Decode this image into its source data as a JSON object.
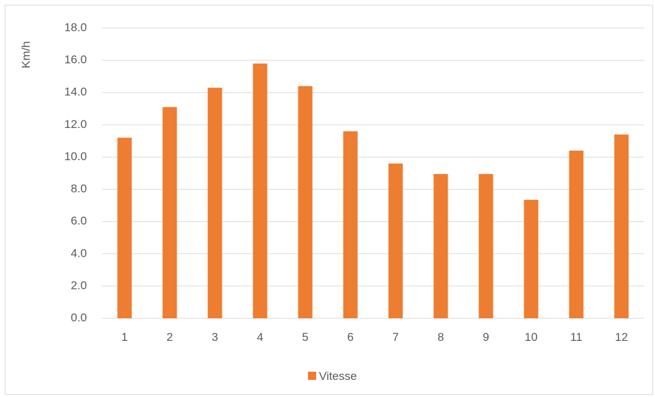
{
  "chart_data": {
    "type": "bar",
    "title": "",
    "xlabel": "",
    "ylabel": "Km/h",
    "categories": [
      "1",
      "2",
      "3",
      "4",
      "5",
      "6",
      "7",
      "8",
      "9",
      "10",
      "11",
      "12"
    ],
    "series": [
      {
        "name": "Vitesse",
        "color": "#ed7d31",
        "values": [
          11.2,
          13.1,
          14.3,
          15.8,
          14.4,
          11.6,
          9.6,
          8.95,
          8.95,
          7.35,
          10.4,
          11.4
        ]
      }
    ],
    "ylim": [
      0,
      18
    ],
    "y_ticks": [
      "0.0",
      "2.0",
      "4.0",
      "6.0",
      "8.0",
      "10.0",
      "12.0",
      "14.0",
      "16.0",
      "18.0"
    ],
    "grid": true,
    "legend_position": "bottom"
  },
  "colors": {
    "gridline": "#d9d9d9",
    "axis_text": "#595959"
  }
}
